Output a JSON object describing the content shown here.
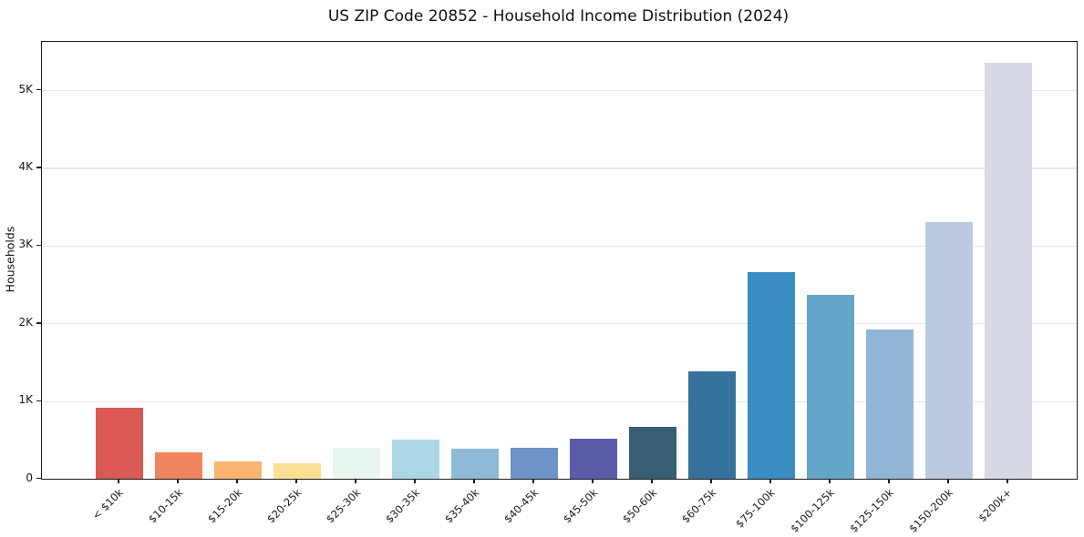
{
  "title": "US ZIP Code 20852 - Household Income Distribution (2024)",
  "chart_data": {
    "type": "bar",
    "title": "US ZIP Code 20852 - Household Income Distribution (2024)",
    "xlabel": "",
    "ylabel": "Households",
    "ylim": [
      0,
      5620
    ],
    "grid": "horizontal-only",
    "legend": "none",
    "frame": "full-box",
    "ytick_values": [
      0,
      1000,
      2000,
      3000,
      4000,
      5000
    ],
    "ytick_labels": [
      "0",
      "1K",
      "2K",
      "3K",
      "4K",
      "5K"
    ],
    "categories": [
      "< $10k",
      "$10-15k",
      "$15-20k",
      "$20-25k",
      "$25-30k",
      "$30-35k",
      "$35-40k",
      "$40-45k",
      "$45-50k",
      "$50-60k",
      "$60-75k",
      "$75-100k",
      "$100-125k",
      "$125-150k",
      "$150-200k",
      "$200k+"
    ],
    "values": [
      910,
      345,
      220,
      195,
      400,
      500,
      385,
      395,
      515,
      670,
      1380,
      2660,
      2370,
      1920,
      3300,
      5350
    ],
    "bar_colors": [
      "#d95a52",
      "#f0845e",
      "#f9b46f",
      "#fbe095",
      "#e9f6ef",
      "#abd7e7",
      "#8ebad8",
      "#6d93c7",
      "#5a5ba9",
      "#375e73",
      "#36719b",
      "#398dc0",
      "#62a5c9",
      "#91b6d5",
      "#bbcade",
      "#d8d9e6"
    ],
    "spine_color": "#1c1c1c",
    "grid_color": "#e7e7e7",
    "background_color": "#ffffff",
    "text_color": "#111111"
  }
}
